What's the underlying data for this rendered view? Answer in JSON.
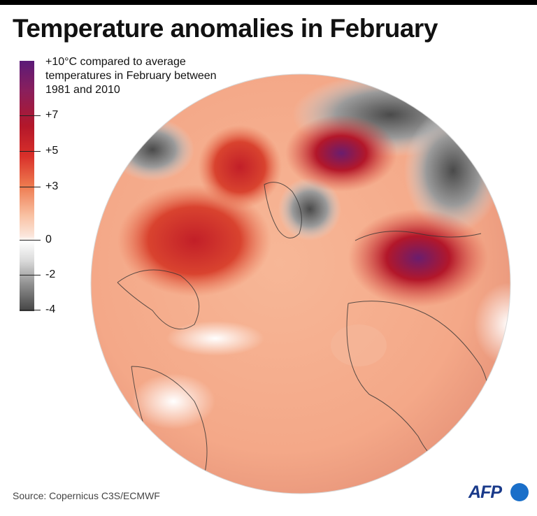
{
  "title": "Temperature anomalies in February",
  "legend": {
    "note": "+10°C compared to average temperatures in February between 1981 and 2010",
    "ticks": [
      {
        "label": "+7"
      },
      {
        "label": "+5"
      },
      {
        "label": "+3"
      },
      {
        "label": "0"
      },
      {
        "label": "-2"
      },
      {
        "label": "-4"
      }
    ],
    "colors": {
      "max": "#5b1a78",
      "warm": "#b3172a",
      "mild": "#f3a07a",
      "neutral": "#ffffff",
      "cool": "#8a8a8a",
      "cold": "#444444"
    }
  },
  "source": "Source: Copernicus C3S/ECMWF",
  "logo": "AFP"
}
